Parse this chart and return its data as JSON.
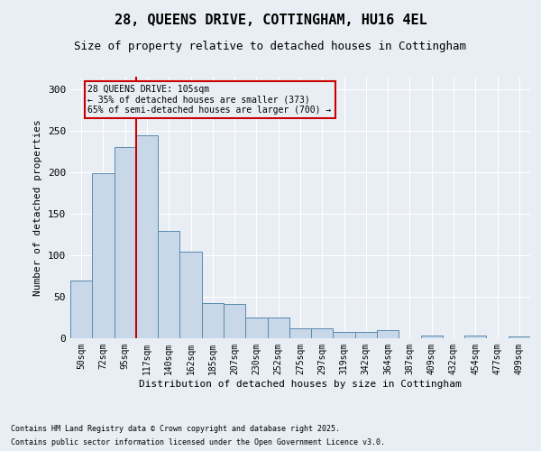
{
  "title": "28, QUEENS DRIVE, COTTINGHAM, HU16 4EL",
  "subtitle": "Size of property relative to detached houses in Cottingham",
  "xlabel": "Distribution of detached houses by size in Cottingham",
  "ylabel": "Number of detached properties",
  "bar_values": [
    70,
    199,
    230,
    244,
    129,
    104,
    42,
    41,
    25,
    25,
    12,
    12,
    8,
    8,
    10,
    0,
    3,
    0,
    3,
    0,
    2
  ],
  "categories": [
    "50sqm",
    "72sqm",
    "95sqm",
    "117sqm",
    "140sqm",
    "162sqm",
    "185sqm",
    "207sqm",
    "230sqm",
    "252sqm",
    "275sqm",
    "297sqm",
    "319sqm",
    "342sqm",
    "364sqm",
    "387sqm",
    "409sqm",
    "432sqm",
    "454sqm",
    "477sqm",
    "499sqm"
  ],
  "bar_color": "#c8d8e8",
  "bar_edge_color": "#5a8ab0",
  "background_color": "#e8eef4",
  "vline_color": "#cc0000",
  "annotation_text": "28 QUEENS DRIVE: 105sqm\n← 35% of detached houses are smaller (373)\n65% of semi-detached houses are larger (700) →",
  "annotation_box_color": "#cc0000",
  "ylim": [
    0,
    315
  ],
  "yticks": [
    0,
    50,
    100,
    150,
    200,
    250,
    300
  ],
  "footer1": "Contains HM Land Registry data © Crown copyright and database right 2025.",
  "footer2": "Contains public sector information licensed under the Open Government Licence v3.0.",
  "title_fontsize": 11,
  "subtitle_fontsize": 9
}
